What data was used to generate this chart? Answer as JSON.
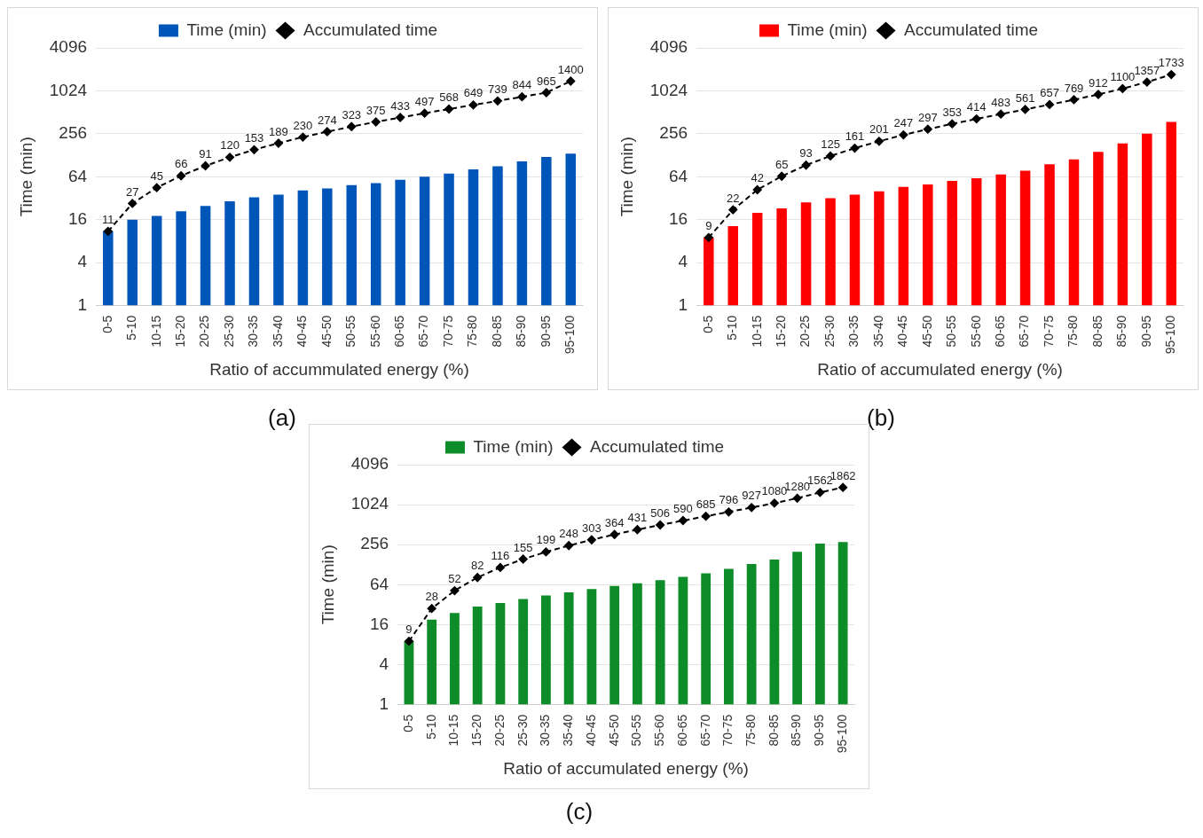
{
  "chart_data": [
    {
      "type": "bar",
      "xlabel": "Ratio of accummulated energy (%)",
      "ylabel": "Time (min)",
      "annotations": [
        "(a)"
      ],
      "categories": [
        "0-5",
        "5-10",
        "10-15",
        "15-20",
        "20-25",
        "25-30",
        "30-35",
        "35-40",
        "40-45",
        "45-50",
        "50-55",
        "55-60",
        "60-65",
        "65-70",
        "70-75",
        "75-80",
        "80-85",
        "85-90",
        "90-95",
        "95-100"
      ],
      "log": "y",
      "ylim": [
        1,
        4096
      ],
      "yticks": [
        1,
        4,
        16,
        64,
        256,
        1024,
        4096
      ],
      "grid": "y",
      "legend": "top",
      "marker": "diamond",
      "line_style": "dashed",
      "series": [
        {
          "name": "Time (min)",
          "color": "#0056b8",
          "values": [
            11,
            16,
            18,
            21,
            25,
            29,
            33,
            36,
            41,
            44,
            49,
            52,
            58,
            64,
            71,
            81,
            90,
            105,
            121,
            135
          ]
        },
        {
          "name": "Accumulated time",
          "type": "line",
          "color": "#000000",
          "values": [
            11,
            27,
            45,
            66,
            91,
            120,
            153,
            189,
            230,
            274,
            323,
            375,
            433,
            497,
            568,
            649,
            739,
            844,
            965,
            1400
          ],
          "value_labels": [
            "11",
            "27",
            "45",
            "66",
            "91",
            "120",
            "153",
            "189",
            "230",
            "274",
            "323",
            "375",
            "433",
            "497",
            "568",
            "649",
            "739",
            "844",
            "965",
            "1400"
          ]
        }
      ]
    },
    {
      "type": "bar",
      "xlabel": "Ratio of accumulated energy (%)",
      "ylabel": "Time (min)",
      "annotations": [
        "(b)"
      ],
      "categories": [
        "0-5",
        "5-10",
        "10-15",
        "15-20",
        "20-25",
        "25-30",
        "30-35",
        "35-40",
        "40-45",
        "45-50",
        "50-55",
        "55-60",
        "60-65",
        "65-70",
        "70-75",
        "75-80",
        "80-85",
        "85-90",
        "90-95",
        "95-100"
      ],
      "log": "y",
      "ylim": [
        1,
        4096
      ],
      "yticks": [
        1,
        4,
        16,
        64,
        256,
        1024,
        4096
      ],
      "grid": "y",
      "legend": "top",
      "marker": "diamond",
      "line_style": "dashed",
      "series": [
        {
          "name": "Time (min)",
          "color": "#ff0000",
          "values": [
            9,
            13,
            20,
            23,
            28,
            32,
            36,
            40,
            46,
            50,
            56,
            61,
            69,
            78,
            96,
            112,
            143,
            188,
            257,
            376
          ]
        },
        {
          "name": "Accumulated time",
          "type": "line",
          "color": "#000000",
          "values": [
            9,
            22,
            42,
            65,
            93,
            125,
            161,
            201,
            247,
            297,
            353,
            414,
            483,
            561,
            657,
            769,
            912,
            1100,
            1357,
            1733
          ],
          "value_labels": [
            "9",
            "22",
            "42",
            "65",
            "93",
            "125",
            "161",
            "201",
            "247",
            "297",
            "353",
            "414",
            "483",
            "561",
            "657",
            "769",
            "912",
            "1100",
            "1357",
            "1733"
          ]
        }
      ]
    },
    {
      "type": "bar",
      "xlabel": "Ratio of accumulated energy (%)",
      "ylabel": "Time (min)",
      "annotations": [
        "(c)"
      ],
      "categories": [
        "0-5",
        "5-10",
        "10-15",
        "15-20",
        "20-25",
        "25-30",
        "30-35",
        "35-40",
        "40-45",
        "45-50",
        "50-55",
        "55-60",
        "60-65",
        "65-70",
        "70-75",
        "75-80",
        "80-85",
        "85-90",
        "90-95",
        "95-100"
      ],
      "log": "y",
      "ylim": [
        1,
        4096
      ],
      "yticks": [
        1,
        4,
        16,
        64,
        256,
        1024,
        4096
      ],
      "grid": "y",
      "legend": "top",
      "marker": "diamond",
      "line_style": "dashed",
      "series": [
        {
          "name": "Time (min)",
          "color": "#0e8c2a",
          "values": [
            9,
            19,
            24,
            30,
            34,
            39,
            44,
            49,
            55,
            61,
            67,
            75,
            84,
            95,
            111,
            131,
            153,
            200,
            265,
            280
          ]
        },
        {
          "name": "Accumulated time",
          "type": "line",
          "color": "#000000",
          "values": [
            9,
            28,
            52,
            82,
            116,
            155,
            199,
            248,
            303,
            364,
            431,
            506,
            590,
            685,
            796,
            927,
            1080,
            1280,
            1562,
            1862
          ],
          "value_labels": [
            "9",
            "28",
            "52",
            "82",
            "116",
            "155",
            "199",
            "248",
            "303",
            "364",
            "431",
            "506",
            "590",
            "685",
            "796",
            "927",
            "1080",
            "1280",
            "1562",
            "1862"
          ]
        }
      ]
    }
  ]
}
